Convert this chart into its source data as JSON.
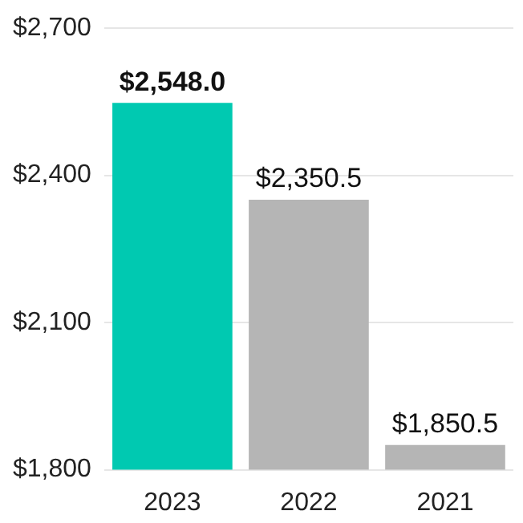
{
  "chart_data": {
    "type": "bar",
    "categories": [
      "2023",
      "2022",
      "2021"
    ],
    "values": [
      2548.0,
      2350.5,
      1850.5
    ],
    "colors": [
      "#00c9b1",
      "#b5b5b5",
      "#b5b5b5"
    ],
    "value_labels": [
      "$2,548.0",
      "$2,350.5",
      "$1,850.5"
    ],
    "ylim": [
      1800,
      2700
    ],
    "yticks": [
      {
        "value": 1800,
        "label": "$1,800"
      },
      {
        "value": 2100,
        "label": "$2,100"
      },
      {
        "value": 2400,
        "label": "$2,400"
      },
      {
        "value": 2700,
        "label": "$2,700"
      }
    ],
    "grid": "y",
    "legend": false
  }
}
